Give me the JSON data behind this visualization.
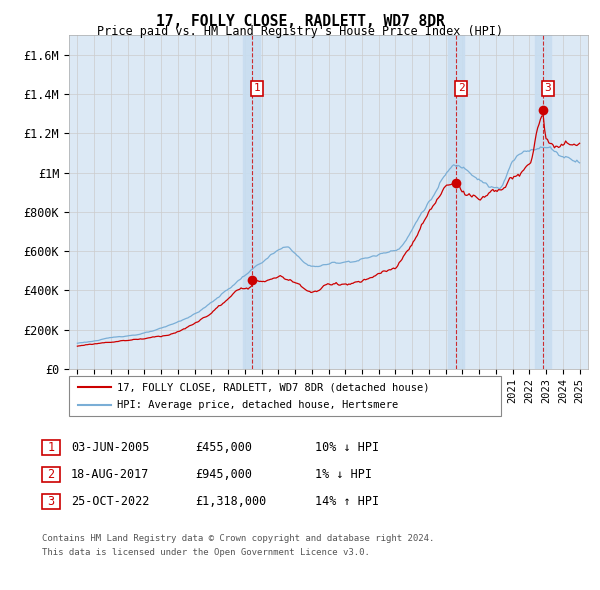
{
  "title": "17, FOLLY CLOSE, RADLETT, WD7 8DR",
  "subtitle": "Price paid vs. HM Land Registry's House Price Index (HPI)",
  "legend_line1": "17, FOLLY CLOSE, RADLETT, WD7 8DR (detached house)",
  "legend_line2": "HPI: Average price, detached house, Hertsmere",
  "sales": [
    {
      "label": "1",
      "date": "03-JUN-2005",
      "price": 455000,
      "x_year": 2005.42,
      "hpi_pct": "10%",
      "hpi_dir": "↓"
    },
    {
      "label": "2",
      "date": "18-AUG-2017",
      "price": 945000,
      "x_year": 2017.62,
      "hpi_pct": "1%",
      "hpi_dir": "↓"
    },
    {
      "label": "3",
      "date": "25-OCT-2022",
      "price": 1318000,
      "x_year": 2022.81,
      "hpi_pct": "14%",
      "hpi_dir": "↑"
    }
  ],
  "footer1": "Contains HM Land Registry data © Crown copyright and database right 2024.",
  "footer2": "This data is licensed under the Open Government Licence v3.0.",
  "ylim": [
    0,
    1700000
  ],
  "xlim": [
    1994.5,
    2025.5
  ],
  "yticks": [
    0,
    200000,
    400000,
    600000,
    800000,
    1000000,
    1200000,
    1400000,
    1600000
  ],
  "ytick_labels": [
    "£0",
    "£200K",
    "£400K",
    "£600K",
    "£800K",
    "£1M",
    "£1.2M",
    "£1.4M",
    "£1.6M"
  ],
  "red_color": "#cc0000",
  "blue_color": "#7aaed6",
  "grid_color": "#cccccc",
  "bg_color": "#ffffff",
  "panel_bg": "#dce9f5",
  "highlight_bg": "#c8ddf0"
}
